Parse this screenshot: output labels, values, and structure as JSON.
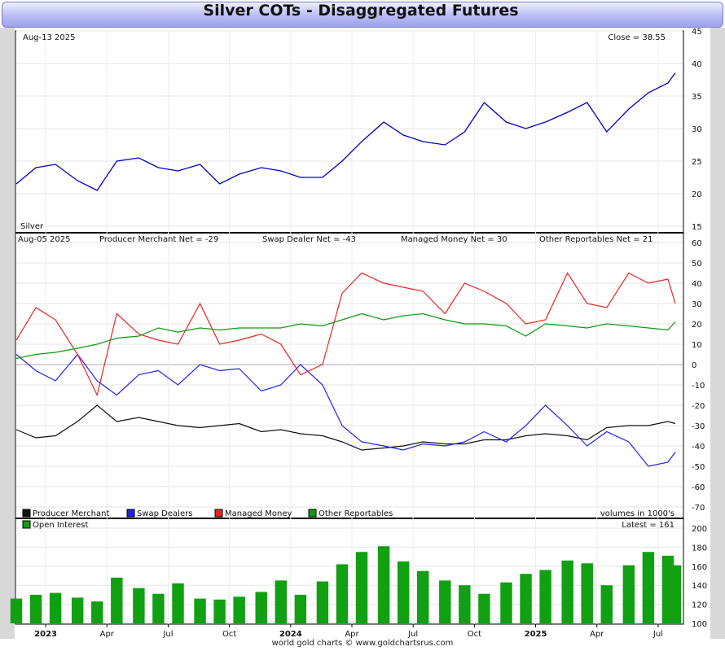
{
  "title": "Silver COTs - Disaggregated Futures",
  "footer": "world gold charts © www.goldchartsrus.com",
  "colors": {
    "price": "#0000cc",
    "producer": "#111111",
    "swap": "#2222ee",
    "managed": "#ee2222",
    "other": "#119911",
    "oi_bar": "#11a011"
  },
  "x_axis_labels": [
    {
      "label": "2023",
      "bold": true
    },
    {
      "label": "Apr",
      "bold": false
    },
    {
      "label": "Jul",
      "bold": false
    },
    {
      "label": "Oct",
      "bold": false
    },
    {
      "label": "2024",
      "bold": true
    },
    {
      "label": "Apr",
      "bold": false
    },
    {
      "label": "Jul",
      "bold": false
    },
    {
      "label": "Oct",
      "bold": false
    },
    {
      "label": "2025",
      "bold": true
    },
    {
      "label": "Apr",
      "bold": false
    },
    {
      "label": "Jul",
      "bold": false
    }
  ],
  "price_panel": {
    "date_label": "Aug-13  2025",
    "close_label": "Close = 38.55",
    "corner_label": "Silver",
    "yticks": [
      15,
      20,
      25,
      30,
      35,
      40,
      45
    ]
  },
  "cot_panel": {
    "date_label": "Aug-05  2025",
    "stats": [
      "Producer Merchant Net = -29",
      "Swap Dealer Net = -43",
      "Managed Money Net = 30",
      "Other Reportables Net = 21"
    ],
    "yticks": [
      60,
      50,
      40,
      30,
      20,
      10,
      0,
      -10,
      -20,
      -30,
      -40,
      -50,
      -60,
      -70
    ],
    "legend": [
      {
        "label": "Producer Merchant",
        "color": "#111111"
      },
      {
        "label": "Swap Dealers",
        "color": "#2222ee"
      },
      {
        "label": "Managed Money",
        "color": "#ee2222"
      },
      {
        "label": "Other Reportables",
        "color": "#119911"
      }
    ],
    "units_label": "volumes in 1000's"
  },
  "oi_panel": {
    "legend_label": "Open Interest",
    "latest_label": "Latest = 161",
    "yticks": [
      100,
      120,
      140,
      160,
      180,
      200
    ]
  },
  "chart_data": [
    {
      "type": "line",
      "title": "Silver",
      "x": [
        2022.92,
        2023.0,
        2023.08,
        2023.17,
        2023.25,
        2023.33,
        2023.42,
        2023.5,
        2023.58,
        2023.67,
        2023.75,
        2023.83,
        2023.92,
        2024.0,
        2024.08,
        2024.17,
        2024.25,
        2024.33,
        2024.42,
        2024.5,
        2024.58,
        2024.67,
        2024.75,
        2024.83,
        2024.92,
        2025.0,
        2025.08,
        2025.17,
        2025.25,
        2025.33,
        2025.42,
        2025.5,
        2025.58,
        2025.61
      ],
      "series": [
        {
          "name": "Silver",
          "values": [
            21.5,
            24,
            24.5,
            22,
            20.5,
            25,
            25.5,
            24,
            23.5,
            24.5,
            21.5,
            23,
            24,
            23.5,
            22.5,
            22.5,
            25,
            28,
            31,
            29,
            28,
            27.5,
            29.5,
            34,
            31,
            30,
            31,
            32.5,
            34,
            29.5,
            33,
            35.5,
            37,
            38.55
          ]
        }
      ],
      "ylim": [
        15,
        45
      ]
    },
    {
      "type": "line",
      "title": "Silver COTs - Disaggregated Futures",
      "x": [
        2022.92,
        2023.0,
        2023.08,
        2023.17,
        2023.25,
        2023.33,
        2023.42,
        2023.5,
        2023.58,
        2023.67,
        2023.75,
        2023.83,
        2023.92,
        2024.0,
        2024.08,
        2024.17,
        2024.25,
        2024.33,
        2024.42,
        2024.5,
        2024.58,
        2024.67,
        2024.75,
        2024.83,
        2024.92,
        2025.0,
        2025.08,
        2025.17,
        2025.25,
        2025.33,
        2025.42,
        2025.5,
        2025.58,
        2025.61
      ],
      "series": [
        {
          "name": "Producer Merchant",
          "values": [
            -32,
            -36,
            -35,
            -28,
            -20,
            -28,
            -26,
            -28,
            -30,
            -31,
            -30,
            -29,
            -33,
            -32,
            -34,
            -35,
            -38,
            -42,
            -41,
            -40,
            -38,
            -39,
            -39,
            -37,
            -37,
            -35,
            -34,
            -35,
            -37,
            -31,
            -30,
            -30,
            -28,
            -29
          ]
        },
        {
          "name": "Swap Dealers",
          "values": [
            5,
            -3,
            -8,
            5,
            -8,
            -15,
            -5,
            -3,
            -10,
            0,
            -3,
            -2,
            -13,
            -10,
            0,
            -10,
            -30,
            -38,
            -40,
            -42,
            -39,
            -40,
            -38,
            -33,
            -38,
            -30,
            -20,
            -30,
            -40,
            -33,
            -38,
            -50,
            -48,
            -43
          ]
        },
        {
          "name": "Managed Money",
          "values": [
            12,
            28,
            22,
            5,
            -15,
            25,
            15,
            12,
            10,
            30,
            10,
            12,
            15,
            10,
            -5,
            0,
            35,
            45,
            40,
            38,
            36,
            25,
            40,
            36,
            30,
            20,
            22,
            45,
            30,
            28,
            45,
            40,
            42,
            30
          ]
        },
        {
          "name": "Other Reportables",
          "values": [
            3,
            5,
            6,
            8,
            10,
            13,
            14,
            18,
            16,
            18,
            17,
            18,
            18,
            18,
            20,
            19,
            22,
            25,
            22,
            24,
            25,
            22,
            20,
            20,
            19,
            14,
            20,
            19,
            18,
            20,
            19,
            18,
            17,
            21
          ]
        }
      ],
      "ylim": [
        -70,
        60
      ]
    },
    {
      "type": "bar",
      "title": "Open Interest",
      "x": [
        2022.92,
        2023.0,
        2023.08,
        2023.17,
        2023.25,
        2023.33,
        2023.42,
        2023.5,
        2023.58,
        2023.67,
        2023.75,
        2023.83,
        2023.92,
        2024.0,
        2024.08,
        2024.17,
        2024.25,
        2024.33,
        2024.42,
        2024.5,
        2024.58,
        2024.67,
        2024.75,
        2024.83,
        2024.92,
        2025.0,
        2025.08,
        2025.17,
        2025.25,
        2025.33,
        2025.42,
        2025.5,
        2025.58,
        2025.61
      ],
      "series": [
        {
          "name": "Open Interest",
          "values": [
            126,
            130,
            132,
            127,
            123,
            148,
            137,
            131,
            142,
            126,
            125,
            128,
            133,
            145,
            130,
            144,
            162,
            175,
            181,
            165,
            155,
            145,
            140,
            131,
            143,
            152,
            156,
            166,
            163,
            140,
            161,
            175,
            171,
            161
          ]
        }
      ],
      "ylim": [
        100,
        200
      ]
    }
  ]
}
